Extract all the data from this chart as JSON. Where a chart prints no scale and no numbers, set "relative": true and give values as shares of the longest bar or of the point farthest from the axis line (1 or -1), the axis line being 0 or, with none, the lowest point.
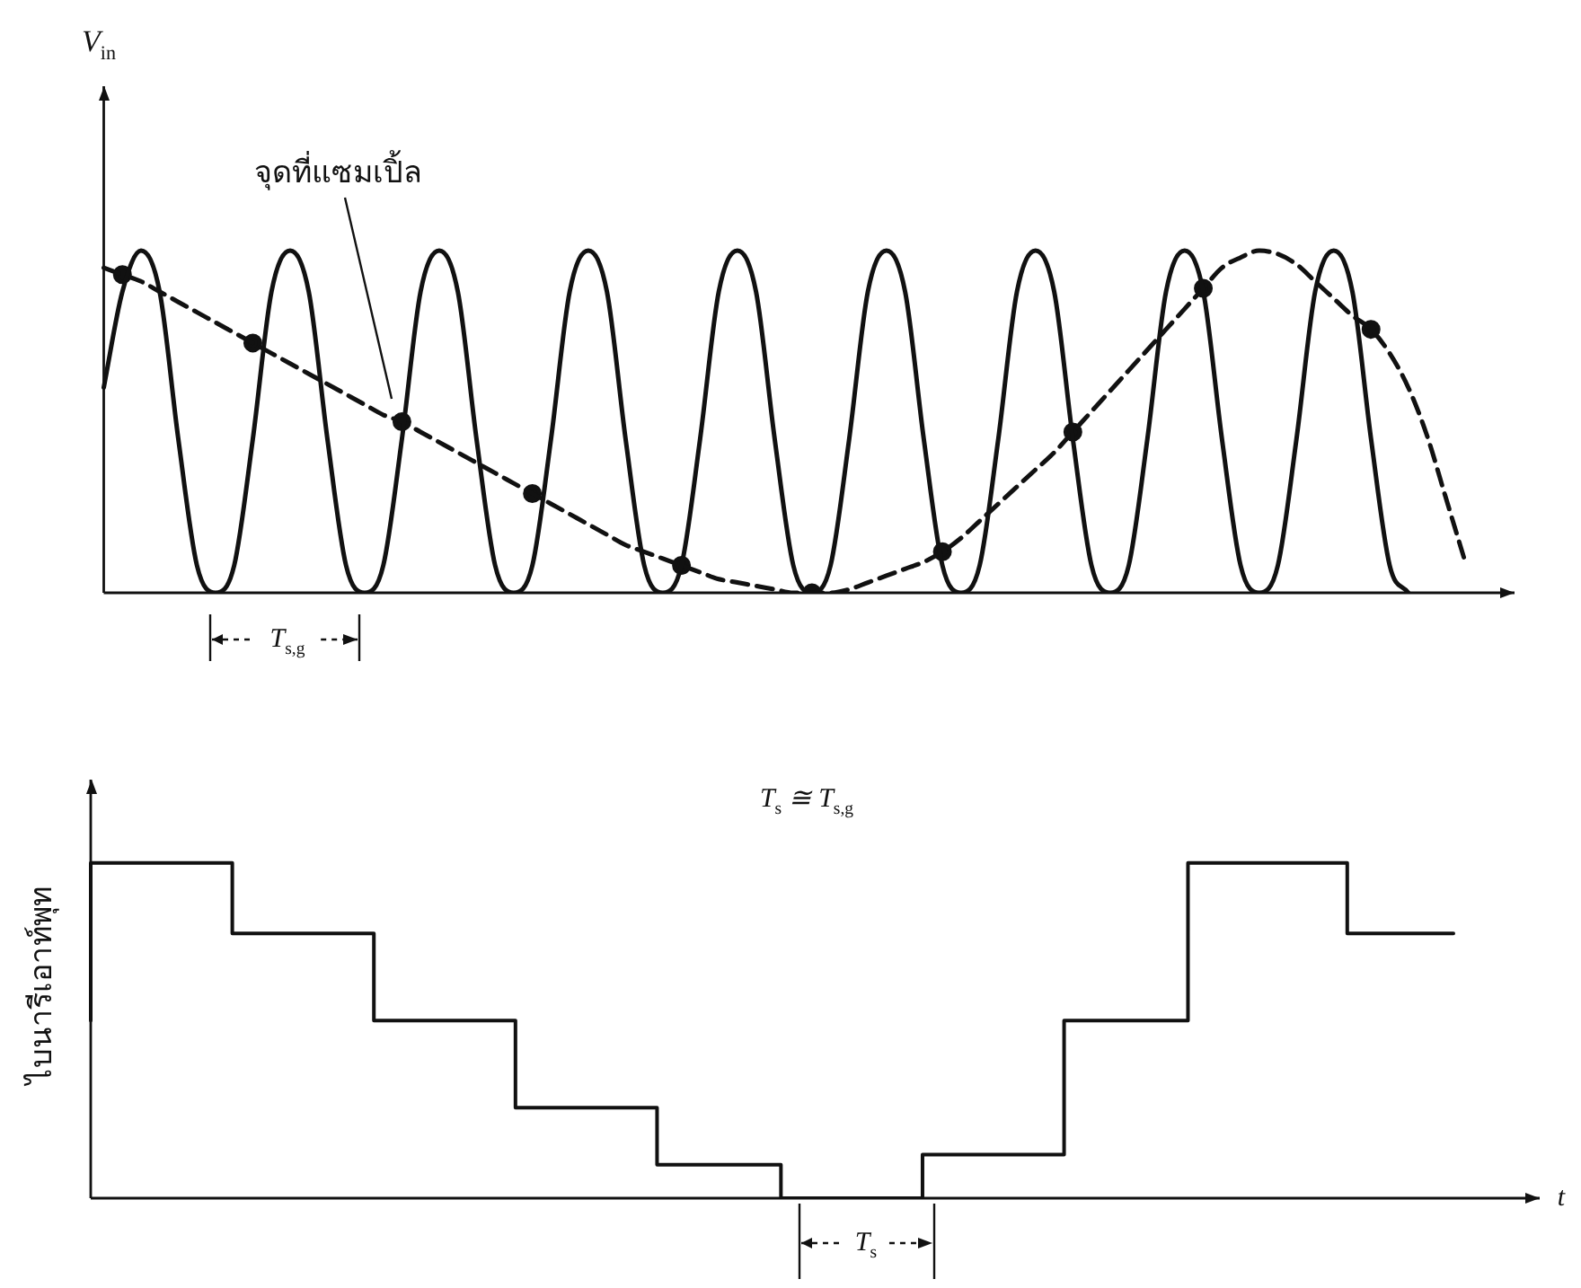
{
  "chart_data": [
    {
      "type": "line",
      "relative": true,
      "ylabel": "V$_{in}$",
      "annotations": [
        "จุดที่แซมเปิ้ล",
        "T$_{s,g}$"
      ],
      "categories": [
        null,
        null,
        null,
        null,
        null,
        null,
        null,
        null,
        null,
        null,
        null,
        null,
        null,
        null,
        null,
        null,
        null,
        null,
        null,
        null,
        null,
        null,
        null,
        null,
        null,
        null,
        null,
        null,
        null,
        null,
        null,
        null,
        null,
        null,
        null,
        null,
        null,
        null,
        null,
        null,
        null,
        null,
        null,
        null,
        null,
        null,
        null,
        null,
        null,
        null,
        null,
        null,
        null,
        null,
        null,
        null,
        null,
        null,
        null,
        null,
        null,
        null,
        null,
        null,
        null,
        null,
        null,
        null,
        null,
        null,
        null,
        null,
        null,
        null
      ],
      "series": [
        {
          "type": "line",
          "color": "#111111",
          "values": [
            0.6,
            0.88,
            1,
            0.88,
            0.45,
            0.08,
            0,
            0.08,
            0.45,
            0.88,
            1,
            0.88,
            0.45,
            0.08,
            0,
            0.08,
            0.45,
            0.88,
            1,
            0.88,
            0.45,
            0.08,
            0,
            0.08,
            0.45,
            0.88,
            1,
            0.88,
            0.45,
            0.08,
            0,
            0.08,
            0.45,
            0.88,
            1,
            0.88,
            0.45,
            0.08,
            0,
            0.08,
            0.45,
            0.88,
            1,
            0.88,
            0.45,
            0.08,
            0,
            0.08,
            0.45,
            0.88,
            1,
            0.88,
            0.45,
            0.08,
            0,
            0.08,
            0.45,
            0.88,
            1,
            0.88,
            0.45,
            0.08,
            0,
            0.08,
            0.45,
            0.88,
            1,
            0.88,
            0.45,
            0.08,
            0,
            null,
            null,
            null
          ]
        },
        {
          "type": "line",
          "line_style": "dashed",
          "color": "#111111",
          "values": [
            0.95,
            0.93,
            0.91,
            0.88,
            0.85,
            0.82,
            0.79,
            0.76,
            0.73,
            0.7,
            0.67,
            0.64,
            0.61,
            0.58,
            0.55,
            0.52,
            0.5,
            0.47,
            0.44,
            0.41,
            0.38,
            0.35,
            0.32,
            0.29,
            0.26,
            0.23,
            0.2,
            0.17,
            0.14,
            0.12,
            0.1,
            0.08,
            0.06,
            0.04,
            0.03,
            0.02,
            0.01,
            0,
            0,
            0,
            0.01,
            0.03,
            0.05,
            0.07,
            0.09,
            0.12,
            0.16,
            0.21,
            0.26,
            0.31,
            0.36,
            0.41,
            0.47,
            0.53,
            0.59,
            0.65,
            0.71,
            0.77,
            0.83,
            0.89,
            0.95,
            0.98,
            1,
            0.99,
            0.96,
            0.91,
            0.86,
            0.81,
            0.77,
            0.7,
            0.6,
            0.46,
            0.28,
            0.1
          ]
        },
        {
          "type": "line",
          "marker": "circle",
          "color": "#111111",
          "values": [
            null,
            0.93,
            null,
            null,
            null,
            null,
            null,
            null,
            0.73,
            null,
            null,
            null,
            null,
            null,
            null,
            null,
            0.5,
            null,
            null,
            null,
            null,
            null,
            null,
            0.29,
            null,
            null,
            null,
            null,
            null,
            null,
            null,
            0.08,
            null,
            null,
            null,
            null,
            null,
            null,
            0,
            null,
            null,
            null,
            null,
            null,
            null,
            0.12,
            null,
            null,
            null,
            null,
            null,
            null,
            0.47,
            null,
            null,
            null,
            null,
            null,
            null,
            0.89,
            null,
            null,
            null,
            null,
            null,
            null,
            null,
            null,
            0.77,
            null,
            null,
            null,
            null,
            null
          ]
        }
      ]
    },
    {
      "type": "step",
      "relative": true,
      "xlabel": "t",
      "ylabel": "ไบนารีเอาท์พุท",
      "annotations": [
        "T$_{s}$ ≅ T$_{s,g}$",
        "T$_{s}$"
      ],
      "categories": [
        null,
        null,
        null,
        null,
        null,
        null,
        null,
        null,
        null,
        null,
        null,
        null,
        null,
        null,
        null,
        null,
        null,
        null,
        null,
        null,
        null,
        null,
        null,
        null,
        null,
        null,
        null,
        null,
        null,
        null,
        null,
        null,
        null,
        null,
        null,
        null,
        null,
        null,
        null,
        null,
        null,
        null,
        null,
        null,
        null,
        null,
        null,
        null,
        null,
        null,
        null,
        null,
        null,
        null,
        null,
        null,
        null,
        null,
        null,
        null,
        null,
        null,
        null,
        null,
        null,
        null,
        null,
        null,
        null,
        null,
        null,
        null,
        null,
        null,
        null,
        null,
        null,
        null
      ],
      "series": [
        {
          "color": "#111111",
          "values": [
            0.53,
            1,
            1,
            1,
            1,
            1,
            1,
            1,
            1,
            0.79,
            0.79,
            0.79,
            0.79,
            0.79,
            0.79,
            0.79,
            0.79,
            0.53,
            0.53,
            0.53,
            0.53,
            0.53,
            0.53,
            0.53,
            0.53,
            0.27,
            0.27,
            0.27,
            0.27,
            0.27,
            0.27,
            0.27,
            0.27,
            0.1,
            0.1,
            0.1,
            0.1,
            0.1,
            0.1,
            0.1,
            0,
            0,
            0,
            0,
            0,
            0,
            0,
            0,
            0.13,
            0.13,
            0.13,
            0.13,
            0.13,
            0.13,
            0.13,
            0.13,
            0.53,
            0.53,
            0.53,
            0.53,
            0.53,
            0.53,
            0.53,
            1,
            1,
            1,
            1,
            1,
            1,
            1,
            1,
            1,
            0.79,
            0.79,
            0.79,
            0.79,
            0.79,
            0.79
          ]
        }
      ]
    }
  ]
}
